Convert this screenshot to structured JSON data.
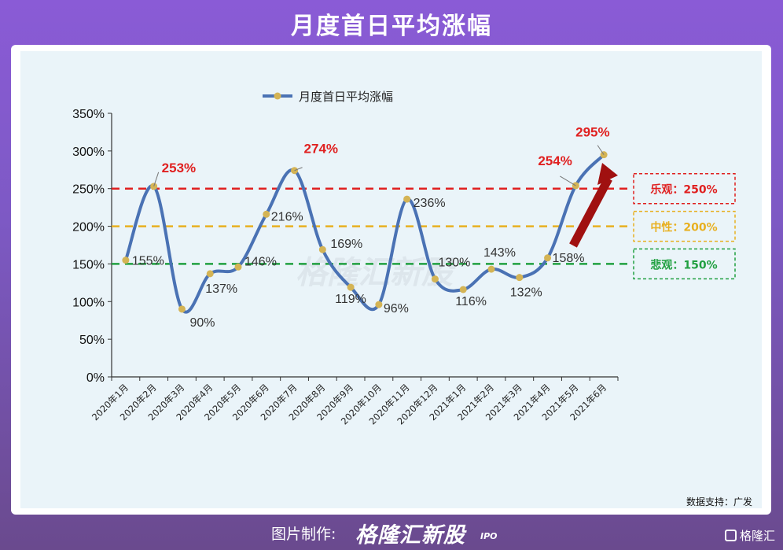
{
  "header": {
    "title": "月度首日平均涨幅"
  },
  "footer": {
    "credit": "数据支持：广发",
    "made_by": "图片制作:",
    "brand": "格隆汇新股",
    "brand_suffix": "IPO",
    "corner_logo": "格隆汇"
  },
  "watermark": "格隆汇新股",
  "colors": {
    "line": "#4a72b4",
    "marker": "#d4b455",
    "optimistic": "#e02020",
    "neutral": "#e8b020",
    "pessimistic": "#20a040",
    "arrow": "#a01010"
  },
  "chart_data": {
    "type": "line",
    "title": "",
    "legend": {
      "label": "月度首日平均涨幅",
      "placement": "top"
    },
    "categories": [
      "2020年1月",
      "2020年2月",
      "2020年3月",
      "2020年4月",
      "2020年5月",
      "2020年6月",
      "2020年7月",
      "2020年8月",
      "2020年9月",
      "2020年10月",
      "2020年11月",
      "2020年12月",
      "2021年1月",
      "2021年2月",
      "2021年3月",
      "2021年4月",
      "2021年5月",
      "2021年6月"
    ],
    "series": [
      {
        "name": "月度首日平均涨幅",
        "values": [
          155,
          253,
          90,
          137,
          146,
          216,
          274,
          169,
          119,
          96,
          236,
          130,
          116,
          143,
          132,
          158,
          254,
          295
        ]
      }
    ],
    "data_labels": [
      "155%",
      "253%",
      "90%",
      "137%",
      "146%",
      "216%",
      "274%",
      "169%",
      "119%",
      "96%",
      "236%",
      "130%",
      "116%",
      "143%",
      "132%",
      "158%",
      "254%",
      "295%"
    ],
    "highlighted_labels": [
      1,
      6,
      16,
      17
    ],
    "ylim": [
      0,
      350
    ],
    "yticks": [
      0,
      50,
      100,
      150,
      200,
      250,
      300,
      350
    ],
    "ytick_labels": [
      "0%",
      "50%",
      "100%",
      "150%",
      "200%",
      "250%",
      "300%",
      "350%"
    ],
    "xlabel": "",
    "ylabel": "",
    "grid": false,
    "reference_lines": [
      {
        "value": 250,
        "label": "乐观：250%",
        "color": "#e02020"
      },
      {
        "value": 200,
        "label": "中性：200%",
        "color": "#e8b020"
      },
      {
        "value": 150,
        "label": "悲观：150%",
        "color": "#20a040"
      }
    ]
  }
}
